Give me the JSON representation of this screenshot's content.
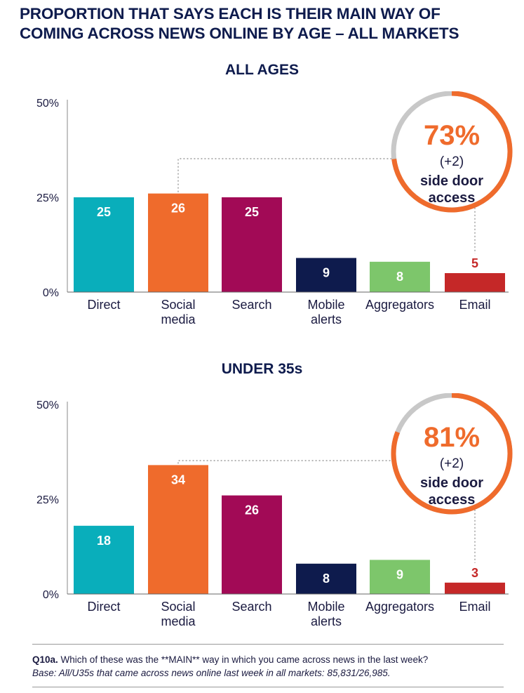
{
  "header": {
    "title_line1": "PROPORTION THAT SAYS EACH IS THEIR MAIN WAY OF",
    "title_line2": "COMING ACROSS NEWS ONLINE BY AGE – ALL MARKETS"
  },
  "colors": {
    "direct": "#09aebb",
    "social": "#ef6b2c",
    "search": "#a20a56",
    "mobile": "#0e1b4d",
    "aggregators": "#7dc66b",
    "email": "#c52828",
    "ring_grey": "#c8c8c8",
    "ring_orange": "#ef6b2c",
    "navy": "#0e1b4d"
  },
  "chart_data": [
    {
      "type": "bar",
      "title": "ALL AGES",
      "categories": [
        "Direct",
        "Social media",
        "Search",
        "Mobile alerts",
        "Aggregators",
        "Email"
      ],
      "category_lines": [
        [
          "Direct"
        ],
        [
          "Social",
          "media"
        ],
        [
          "Search"
        ],
        [
          "Mobile",
          "alerts"
        ],
        [
          "Aggregators"
        ],
        [
          "Email"
        ]
      ],
      "values": [
        25,
        26,
        25,
        9,
        8,
        5
      ],
      "data_labels": [
        "25",
        "26",
        "25",
        "9",
        "8",
        "5"
      ],
      "yticks": [
        "0%",
        "25%",
        "50%"
      ],
      "ylim": [
        0,
        50
      ],
      "callout": {
        "value": "73%",
        "change": "(+2)",
        "line1": "side door",
        "line2": "access",
        "ring_fraction": 0.73
      }
    },
    {
      "type": "bar",
      "title": "UNDER 35s",
      "categories": [
        "Direct",
        "Social media",
        "Search",
        "Mobile alerts",
        "Aggregators",
        "Email"
      ],
      "category_lines": [
        [
          "Direct"
        ],
        [
          "Social",
          "media"
        ],
        [
          "Search"
        ],
        [
          "Mobile",
          "alerts"
        ],
        [
          "Aggregators"
        ],
        [
          "Email"
        ]
      ],
      "values": [
        18,
        34,
        26,
        8,
        9,
        3
      ],
      "data_labels": [
        "18",
        "34",
        "26",
        "8",
        "9",
        "3"
      ],
      "yticks": [
        "0%",
        "25%",
        "50%"
      ],
      "ylim": [
        0,
        50
      ],
      "callout": {
        "value": "81%",
        "change": "(+2)",
        "line1": "side door",
        "line2": "access",
        "ring_fraction": 0.81
      }
    }
  ],
  "footnote": {
    "q_label": "Q10a.",
    "question": "Which of these was the **MAIN** way in which you came across news in the last week?",
    "base": "Base: All/U35s that came across news online last week in all markets: 85,831/26,985."
  }
}
